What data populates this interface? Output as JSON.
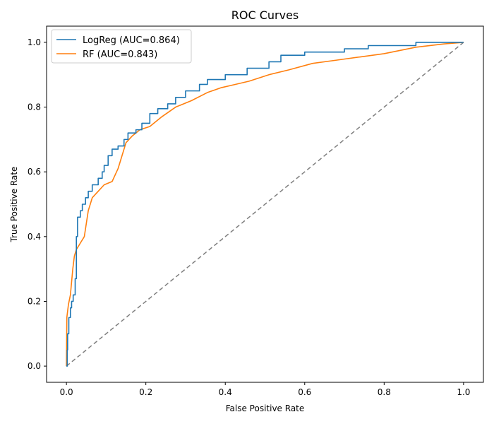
{
  "chart_data": {
    "type": "line",
    "title": "ROC Curves",
    "xlabel": "False Positive Rate",
    "ylabel": "True Positive Rate",
    "xlim": [
      -0.05,
      1.05
    ],
    "ylim": [
      -0.05,
      1.05
    ],
    "xticks": [
      0.0,
      0.2,
      0.4,
      0.6,
      0.8,
      1.0
    ],
    "yticks": [
      0.0,
      0.2,
      0.4,
      0.6,
      0.8,
      1.0
    ],
    "xtick_labels": [
      "0.0",
      "0.2",
      "0.4",
      "0.6",
      "0.8",
      "1.0"
    ],
    "ytick_labels": [
      "0.0",
      "0.2",
      "0.4",
      "0.6",
      "0.8",
      "1.0"
    ],
    "grid": false,
    "legend_position": "top-left",
    "series": [
      {
        "name": "LogReg (AUC=0.864)",
        "color": "#1f77b4",
        "style": "step",
        "points": [
          [
            0.0,
            0.0
          ],
          [
            0.002,
            0.05
          ],
          [
            0.003,
            0.1
          ],
          [
            0.006,
            0.15
          ],
          [
            0.01,
            0.18
          ],
          [
            0.013,
            0.2
          ],
          [
            0.017,
            0.22
          ],
          [
            0.022,
            0.27
          ],
          [
            0.025,
            0.4
          ],
          [
            0.028,
            0.46
          ],
          [
            0.035,
            0.48
          ],
          [
            0.04,
            0.5
          ],
          [
            0.048,
            0.52
          ],
          [
            0.055,
            0.54
          ],
          [
            0.065,
            0.56
          ],
          [
            0.08,
            0.58
          ],
          [
            0.09,
            0.6
          ],
          [
            0.095,
            0.62
          ],
          [
            0.105,
            0.65
          ],
          [
            0.115,
            0.67
          ],
          [
            0.13,
            0.68
          ],
          [
            0.145,
            0.7
          ],
          [
            0.155,
            0.72
          ],
          [
            0.175,
            0.73
          ],
          [
            0.19,
            0.75
          ],
          [
            0.21,
            0.78
          ],
          [
            0.23,
            0.795
          ],
          [
            0.255,
            0.81
          ],
          [
            0.275,
            0.83
          ],
          [
            0.3,
            0.85
          ],
          [
            0.335,
            0.87
          ],
          [
            0.355,
            0.885
          ],
          [
            0.4,
            0.9
          ],
          [
            0.455,
            0.92
          ],
          [
            0.51,
            0.94
          ],
          [
            0.54,
            0.96
          ],
          [
            0.6,
            0.97
          ],
          [
            0.7,
            0.98
          ],
          [
            0.76,
            0.99
          ],
          [
            0.88,
            1.0
          ],
          [
            1.0,
            1.0
          ]
        ]
      },
      {
        "name": "RF (AUC=0.843)",
        "color": "#ff7f0e",
        "style": "line",
        "points": [
          [
            0.0,
            0.0
          ],
          [
            0.001,
            0.15
          ],
          [
            0.005,
            0.19
          ],
          [
            0.01,
            0.22
          ],
          [
            0.013,
            0.26
          ],
          [
            0.016,
            0.3
          ],
          [
            0.02,
            0.34
          ],
          [
            0.025,
            0.36
          ],
          [
            0.035,
            0.38
          ],
          [
            0.045,
            0.4
          ],
          [
            0.05,
            0.44
          ],
          [
            0.055,
            0.48
          ],
          [
            0.065,
            0.52
          ],
          [
            0.08,
            0.54
          ],
          [
            0.095,
            0.56
          ],
          [
            0.115,
            0.57
          ],
          [
            0.13,
            0.61
          ],
          [
            0.14,
            0.65
          ],
          [
            0.15,
            0.69
          ],
          [
            0.165,
            0.71
          ],
          [
            0.185,
            0.73
          ],
          [
            0.21,
            0.74
          ],
          [
            0.24,
            0.77
          ],
          [
            0.275,
            0.8
          ],
          [
            0.315,
            0.82
          ],
          [
            0.355,
            0.845
          ],
          [
            0.39,
            0.86
          ],
          [
            0.425,
            0.87
          ],
          [
            0.46,
            0.88
          ],
          [
            0.51,
            0.9
          ],
          [
            0.56,
            0.915
          ],
          [
            0.62,
            0.935
          ],
          [
            0.68,
            0.945
          ],
          [
            0.74,
            0.955
          ],
          [
            0.8,
            0.965
          ],
          [
            0.88,
            0.985
          ],
          [
            0.95,
            0.995
          ],
          [
            1.0,
            1.0
          ]
        ]
      }
    ],
    "reference_line": {
      "color": "#7f7f7f",
      "points": [
        [
          0.0,
          0.0
        ],
        [
          1.0,
          1.0
        ]
      ]
    }
  }
}
